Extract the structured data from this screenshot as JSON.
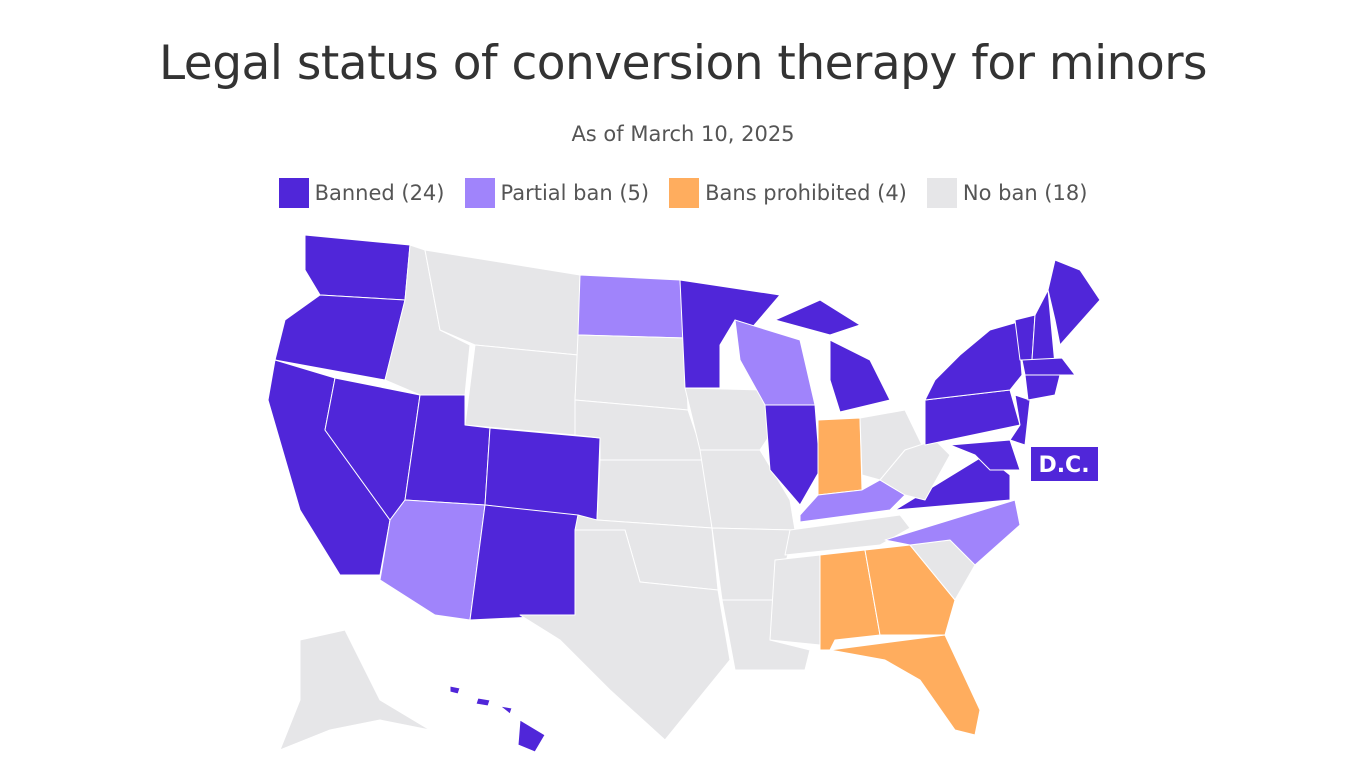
{
  "title": "Legal status of conversion therapy for minors",
  "subtitle": "As of March 10, 2025",
  "legend": [
    {
      "label": "Banned (24)",
      "color": "#5026d9"
    },
    {
      "label": "Partial ban (5)",
      "color": "#a084fb"
    },
    {
      "label": "Bans prohibited (4)",
      "color": "#ffad5e"
    },
    {
      "label": "No ban (18)",
      "color": "#e6e6e8"
    }
  ],
  "regions": [
    0,
    0,
    0,
    0,
    3,
    3,
    3,
    0,
    0,
    1,
    0,
    1,
    3,
    3,
    3,
    3,
    3,
    0,
    3,
    3,
    3,
    3,
    1,
    0,
    0,
    2,
    3,
    1,
    3,
    3,
    2,
    2,
    2,
    3,
    1,
    0,
    3,
    0,
    0,
    0,
    0,
    0,
    0,
    0,
    0,
    0,
    3,
    0
  ],
  "dc_label": {
    "text": "D.C.",
    "status": 0
  }
}
